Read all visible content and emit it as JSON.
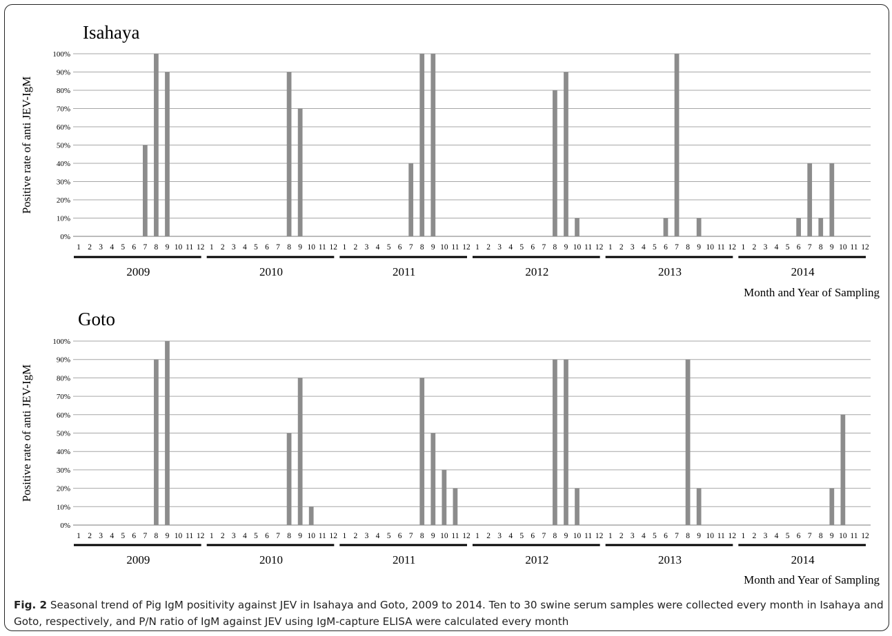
{
  "colors": {
    "bar": "#8c8c8c",
    "grid": "#a6a6a6",
    "axis": "#000000",
    "frame": "#222222"
  },
  "axis_tick_labels": [
    "0%",
    "10%",
    "20%",
    "30%",
    "40%",
    "50%",
    "60%",
    "70%",
    "80%",
    "90%",
    "100%"
  ],
  "chart_data": [
    {
      "type": "bar",
      "title": "Isahaya",
      "ylabel": "Positive  rate of anti JEV-IgM",
      "xlabel": "Month and Year of Sampling",
      "ylim": [
        0,
        100
      ],
      "grid": true,
      "years": [
        "2009",
        "2010",
        "2011",
        "2012",
        "2013",
        "2014"
      ],
      "months": [
        "1",
        "2",
        "3",
        "4",
        "5",
        "6",
        "7",
        "8",
        "9",
        "10",
        "11",
        "12"
      ],
      "values": [
        [
          0,
          0,
          0,
          0,
          0,
          0,
          50,
          100,
          90,
          0,
          0,
          0
        ],
        [
          0,
          0,
          0,
          0,
          0,
          0,
          0,
          90,
          70,
          0,
          0,
          0
        ],
        [
          0,
          0,
          0,
          0,
          0,
          0,
          40,
          100,
          100,
          0,
          0,
          0
        ],
        [
          0,
          0,
          0,
          0,
          0,
          0,
          0,
          80,
          90,
          10,
          0,
          0
        ],
        [
          0,
          0,
          0,
          0,
          0,
          10,
          100,
          0,
          10,
          0,
          0,
          0
        ],
        [
          0,
          0,
          0,
          0,
          0,
          10,
          40,
          10,
          40,
          0,
          0,
          0
        ]
      ]
    },
    {
      "type": "bar",
      "title": "Goto",
      "ylabel": "Positive  rate of anti JEV-IgM",
      "xlabel": "Month and Year of Sampling",
      "ylim": [
        0,
        100
      ],
      "grid": true,
      "years": [
        "2009",
        "2010",
        "2011",
        "2012",
        "2013",
        "2014"
      ],
      "months": [
        "1",
        "2",
        "3",
        "4",
        "5",
        "6",
        "7",
        "8",
        "9",
        "10",
        "11",
        "12"
      ],
      "values": [
        [
          0,
          0,
          0,
          0,
          0,
          0,
          0,
          90,
          100,
          0,
          0,
          0
        ],
        [
          0,
          0,
          0,
          0,
          0,
          0,
          0,
          50,
          80,
          10,
          0,
          0
        ],
        [
          0,
          0,
          0,
          0,
          0,
          0,
          0,
          80,
          50,
          30,
          20,
          0
        ],
        [
          0,
          0,
          0,
          0,
          0,
          0,
          0,
          90,
          90,
          20,
          0,
          0
        ],
        [
          0,
          0,
          0,
          0,
          0,
          0,
          0,
          90,
          20,
          0,
          0,
          0
        ],
        [
          0,
          0,
          0,
          0,
          0,
          0,
          0,
          0,
          20,
          60,
          0,
          0
        ]
      ]
    }
  ],
  "caption": {
    "label": "Fig. 2",
    "text": "Seasonal trend of Pig IgM positivity against JEV in Isahaya and Goto, 2009 to 2014. Ten to 30 swine serum samples were collected every month in Isahaya and Goto, respectively, and P/N ratio of IgM against JEV using IgM-capture ELISA were calculated every month"
  }
}
